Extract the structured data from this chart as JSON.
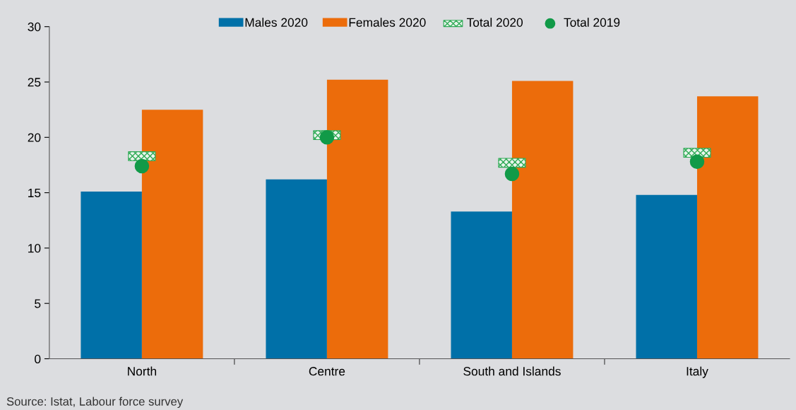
{
  "chart_data": {
    "type": "bar",
    "categories": [
      "North",
      "Centre",
      "South and Islands",
      "Italy"
    ],
    "series": [
      {
        "name": "Males 2020",
        "color": "#0070a8",
        "values": [
          15.1,
          16.2,
          13.3,
          14.8
        ]
      },
      {
        "name": "Females 2020",
        "color": "#ec6c0b",
        "values": [
          22.5,
          25.2,
          25.1,
          23.7
        ]
      },
      {
        "name": "Total 2020",
        "type": "scatter",
        "marker": "square",
        "color": "#2eaa55",
        "values": [
          18.3,
          20.2,
          17.7,
          18.6
        ]
      },
      {
        "name": "Total 2019",
        "type": "scatter",
        "marker": "circle",
        "color": "#119a48",
        "values": [
          17.4,
          20.0,
          16.7,
          17.8
        ]
      }
    ],
    "ylim": [
      0,
      30
    ],
    "yticks": [
      0,
      5,
      10,
      15,
      20,
      25,
      30
    ],
    "grid": false,
    "legend": "top",
    "annotations": [
      "Source: Istat, Labour force survey"
    ]
  }
}
